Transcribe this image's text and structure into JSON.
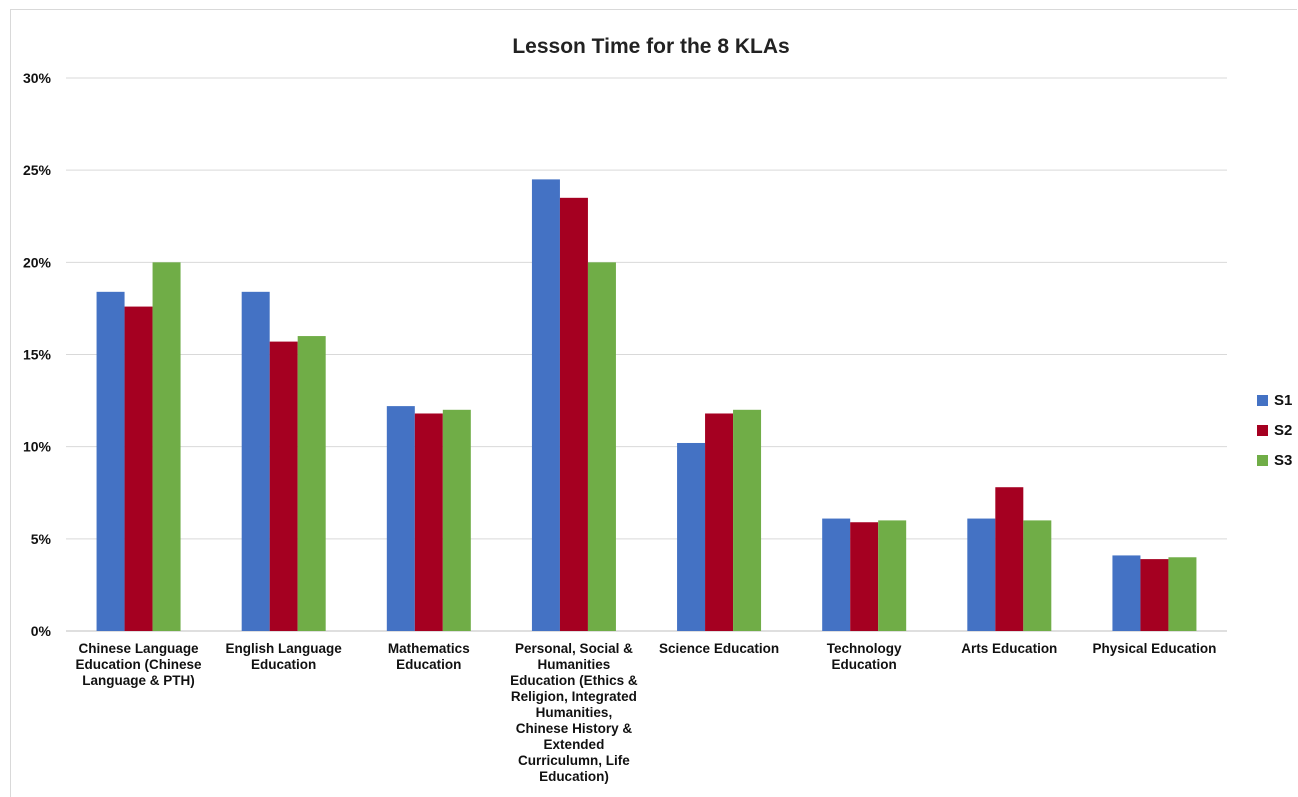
{
  "chart_data": {
    "type": "bar",
    "title": "Lesson Time for the 8 KLAs",
    "xlabel": "",
    "ylabel": "",
    "ylim": [
      0,
      0.3
    ],
    "yticks": [
      "0%",
      "5%",
      "10%",
      "15%",
      "20%",
      "25%",
      "30%"
    ],
    "grid": true,
    "legend_position": "right",
    "categories": [
      [
        "Chinese Language",
        "Education (Chinese",
        "Language & PTH)"
      ],
      [
        "English Language",
        "Education"
      ],
      [
        "Mathematics",
        "Education"
      ],
      [
        "Personal, Social &",
        "Humanities",
        "Education (Ethics &",
        "Religion, Integrated",
        "Humanities,",
        "Chinese History &",
        "Extended",
        "Curriculumn, Life",
        "Education)"
      ],
      [
        "Science Education"
      ],
      [
        "Technology",
        "Education"
      ],
      [
        "Arts Education"
      ],
      [
        "Physical Education"
      ]
    ],
    "series": [
      {
        "name": "S1",
        "color": "#4472C4",
        "values": [
          0.184,
          0.184,
          0.122,
          0.245,
          0.102,
          0.061,
          0.061,
          0.041
        ]
      },
      {
        "name": "S2",
        "color": "#A50021",
        "values": [
          0.176,
          0.157,
          0.118,
          0.235,
          0.118,
          0.059,
          0.078,
          0.039
        ]
      },
      {
        "name": "S3",
        "color": "#70AD47",
        "values": [
          0.2,
          0.16,
          0.12,
          0.2,
          0.12,
          0.06,
          0.06,
          0.04
        ]
      }
    ]
  }
}
